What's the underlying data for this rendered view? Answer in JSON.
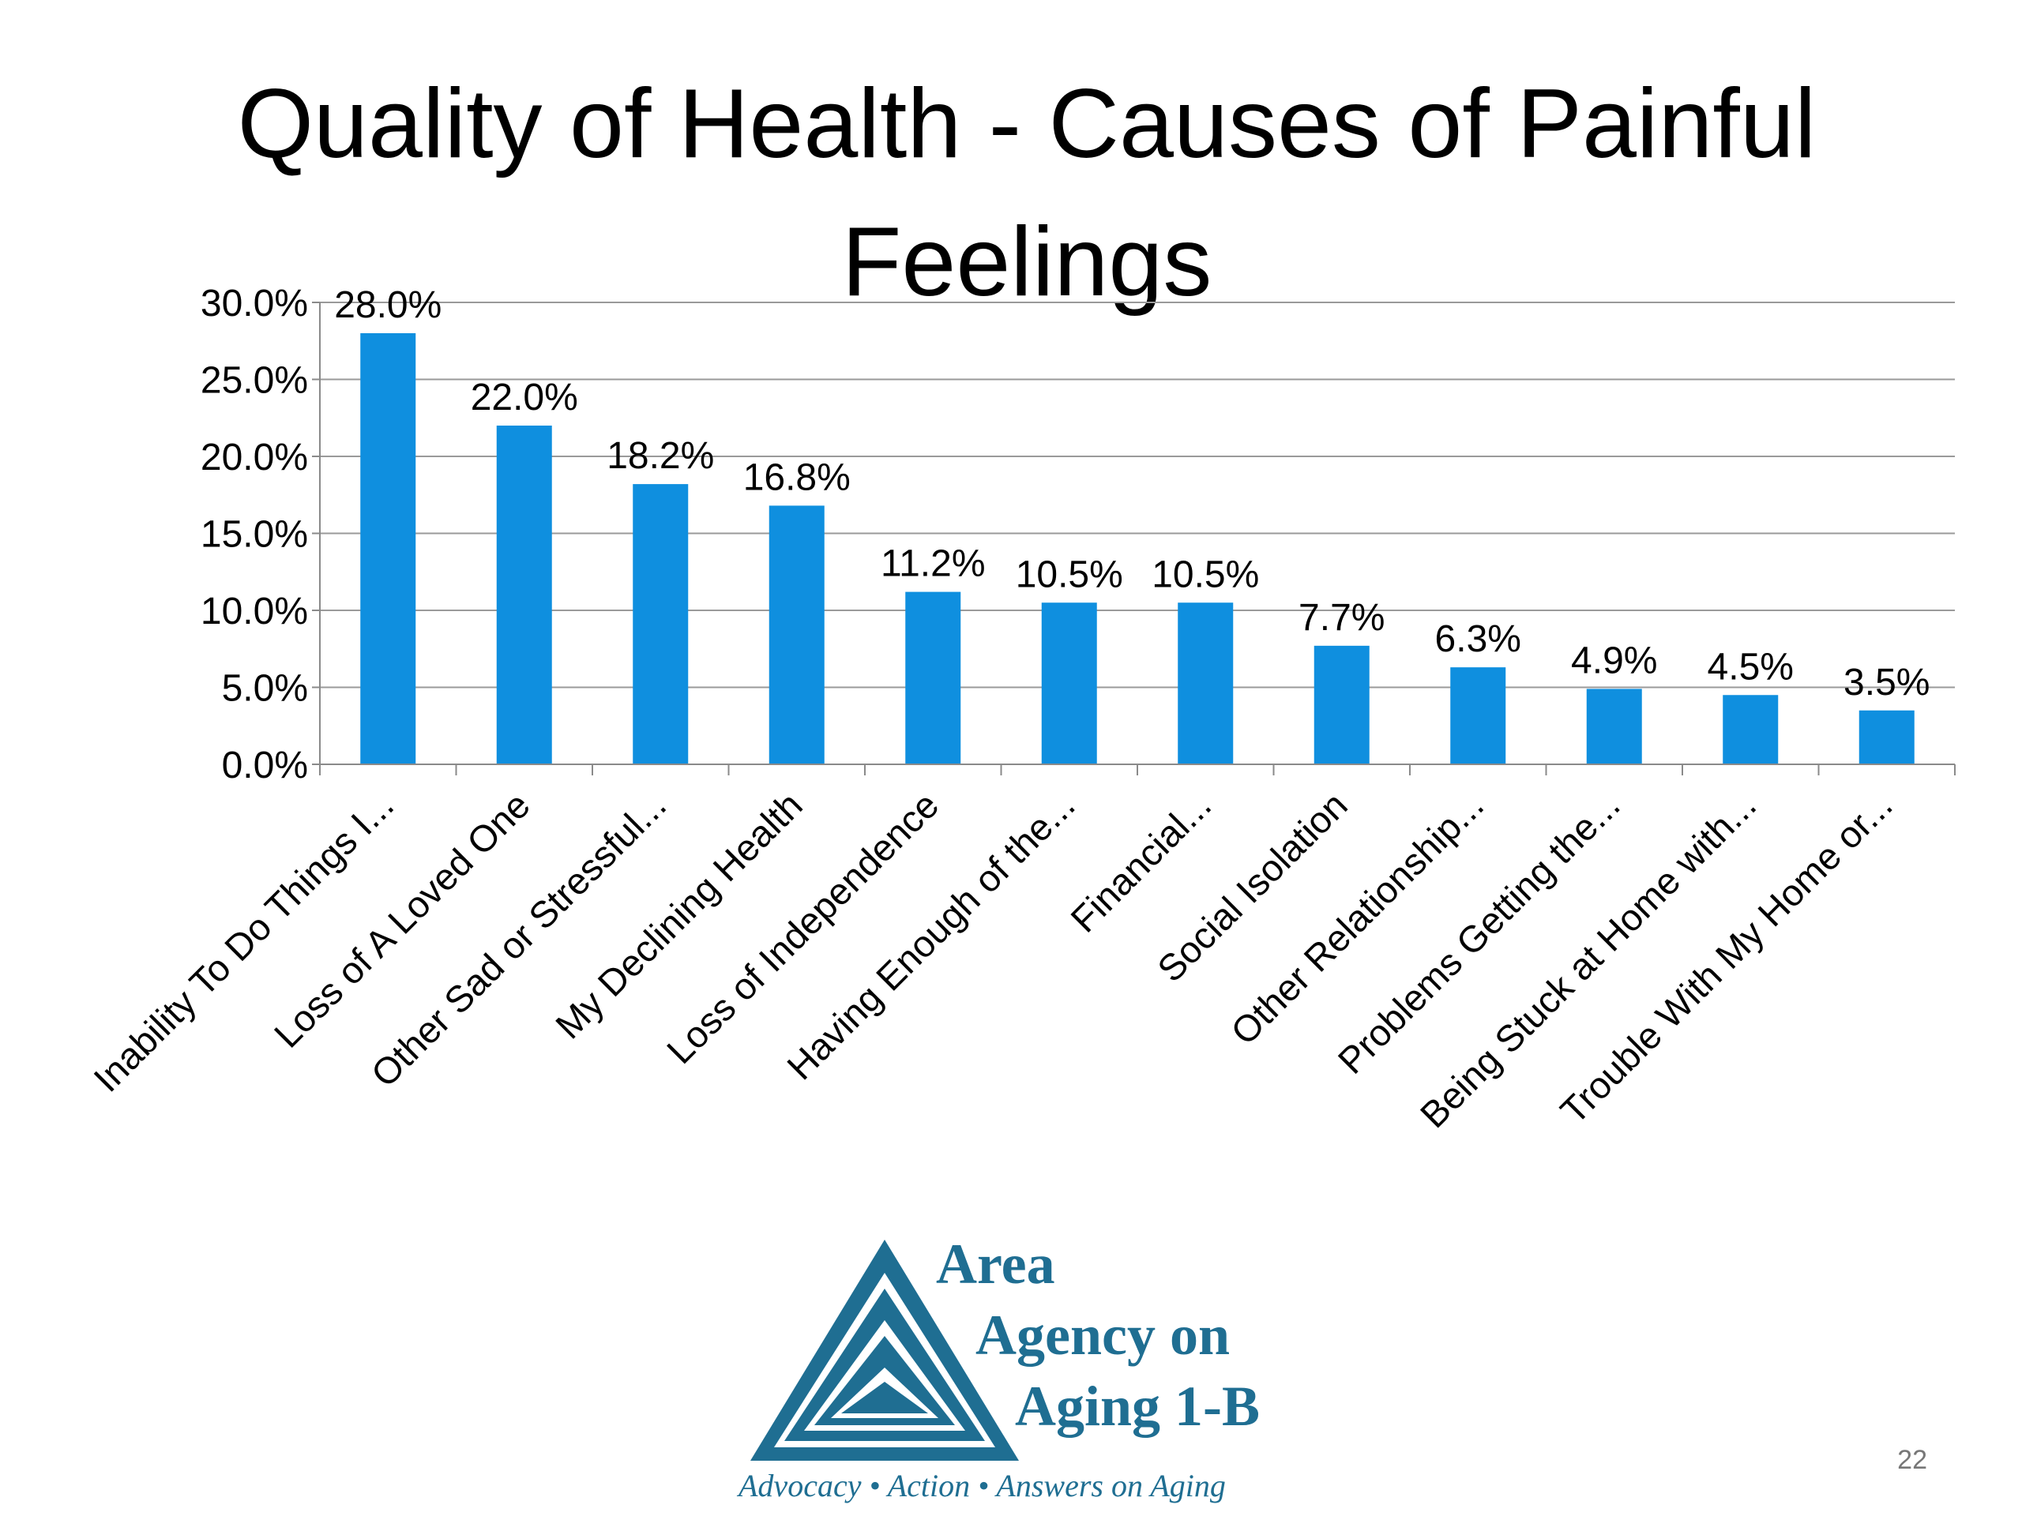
{
  "slide": {
    "title": "Quality of Health - Causes of Painful Feelings",
    "page_number": "22"
  },
  "logo": {
    "line1": "Area",
    "line2": "Agency on",
    "line3": "Aging 1-B",
    "tagline": "Advocacy • Action • Answers on Aging",
    "color": "#1f6e92"
  },
  "chart_data": {
    "type": "bar",
    "title": "",
    "xlabel": "",
    "ylabel": "",
    "categories": [
      "Inability To Do Things I...",
      "Loss of A Loved One",
      "Other Sad or Stressful...",
      "My Declining Health",
      "Loss of Independence",
      "Having Enough of the...",
      "Financial...",
      "Social Isolation",
      "Other Relationship...",
      "Problems Getting the...",
      "Being Stuck at Home with...",
      "Trouble With My Home or..."
    ],
    "values": [
      28.0,
      22.0,
      18.2,
      16.8,
      11.2,
      10.5,
      10.5,
      7.7,
      6.3,
      4.9,
      4.5,
      3.5
    ],
    "value_labels": [
      "28.0%",
      "22.0%",
      "18.2%",
      "16.8%",
      "11.2%",
      "10.5%",
      "10.5%",
      "7.7%",
      "6.3%",
      "4.9%",
      "4.5%",
      "3.5%"
    ],
    "ylim": [
      0,
      30
    ],
    "y_ticks": [
      0,
      5,
      10,
      15,
      20,
      25,
      30
    ],
    "y_tick_labels": [
      "0.0%",
      "5.0%",
      "10.0%",
      "15.0%",
      "20.0%",
      "25.0%",
      "30.0%"
    ],
    "bar_color": "#0f8fdf",
    "grid": true,
    "legend": "none"
  }
}
